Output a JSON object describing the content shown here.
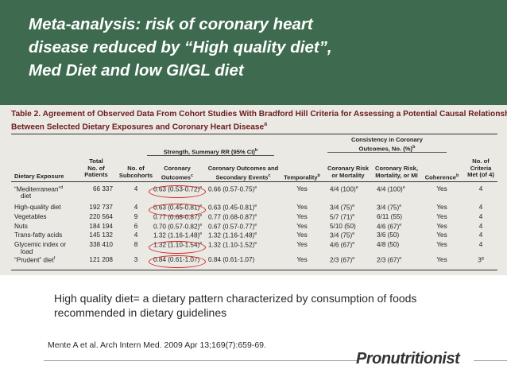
{
  "title_lines": [
    "Meta-analysis: risk of coronary heart",
    "disease reduced by “High quality diet”,",
    "Med Diet and low GI/GL diet"
  ],
  "table": {
    "caption_line1": "Table 2. Agreement of Observed Data From Cohort Studies With Bradford Hill Criteria for Assessing a Potential Causal Relationship",
    "caption_line2": "Between Selected Dietary Exposures and Coronary Heart Disease",
    "caption_sup": "a",
    "header_consistency_1": "Consistency in Coronary",
    "header_consistency_2": "Outcomes, No. (%)",
    "header_consistency_sup": "b",
    "header_strength": "Strength, Summary RR (95% CI)",
    "header_strength_sup": "b",
    "columns": {
      "dietary_exposure": "Dietary Exposure",
      "total_1": "Total",
      "total_2": "No. of",
      "total_3": "Patients",
      "subcohorts_1": "No. of",
      "subcohorts_2": "Subcohorts",
      "coronary_1": "Coronary",
      "coronary_2": "Outcomes",
      "coronary_sup": "c",
      "secondary_1": "Coronary Outcomes and",
      "secondary_2": "Secondary Events",
      "secondary_sup": "c",
      "temporality": "Temporality",
      "temporality_sup": "b",
      "risk_1": "Coronary Risk",
      "risk_2": "or Mortality",
      "risk_mi_1": "Coronary Risk,",
      "risk_mi_2": "Mortality, or MI",
      "coherence": "Coherence",
      "coherence_sup": "b",
      "criteria_1": "No. of",
      "criteria_2": "Criteria",
      "criteria_3": "Met (of 4)"
    },
    "rows": [
      {
        "exposure": "“Mediterranean”",
        "exposure2": "diet",
        "exposure_sup": "d",
        "total": "66 337",
        "sub": "4",
        "rr": "0.63 (0.53-0.72)",
        "rr_sup": "e",
        "rr2": "0.66 (0.57-0.75)",
        "rr2_sup": "e",
        "temp": "Yes",
        "risk": "4/4 (100)",
        "risk_sup": "e",
        "riskmi": "4/4 (100)",
        "riskmi_sup": "e",
        "coh": "Yes",
        "crit": "4"
      },
      {
        "exposure": "High-quality diet",
        "total": "192 737",
        "sub": "4",
        "rr": "0.63 (0.45-0.81)",
        "rr_sup": "e",
        "rr2": "0.63 (0.45-0.81)",
        "rr2_sup": "e",
        "temp": "Yes",
        "risk": "3/4 (75)",
        "risk_sup": "e",
        "riskmi": "3/4 (75)",
        "riskmi_sup": "e",
        "coh": "Yes",
        "crit": "4"
      },
      {
        "exposure": "Vegetables",
        "total": "220 564",
        "sub": "9",
        "rr": "0.77 (0.68-0.87)",
        "rr_sup": "e",
        "rr2": "0.77 (0.68-0.87)",
        "rr2_sup": "e",
        "temp": "Yes",
        "risk": "5/7 (71)",
        "risk_sup": "e",
        "riskmi": "6/11 (55)",
        "riskmi_sup": "",
        "coh": "Yes",
        "crit": "4"
      },
      {
        "exposure": "Nuts",
        "total": "184 194",
        "sub": "6",
        "rr": "0.70 (0.57-0.82)",
        "rr_sup": "e",
        "rr2": "0.67 (0.57-0.77)",
        "rr2_sup": "e",
        "temp": "Yes",
        "risk": "5/10 (50)",
        "risk_sup": "",
        "riskmi": "4/6 (67)",
        "riskmi_sup": "e",
        "coh": "Yes",
        "crit": "4"
      },
      {
        "exposure": "Trans-fatty acids",
        "total": "145 132",
        "sub": "4",
        "rr": "1.32 (1.16-1.48)",
        "rr_sup": "e",
        "rr2": "1.32 (1.16-1.48)",
        "rr2_sup": "e",
        "temp": "Yes",
        "risk": "3/4 (75)",
        "risk_sup": "e",
        "riskmi": "3/6 (50)",
        "riskmi_sup": "",
        "coh": "Yes",
        "crit": "4"
      },
      {
        "exposure": "Glycemic index or",
        "exposure2": "load",
        "total": "338 410",
        "sub": "8",
        "rr": "1.32 (1.10-1.54)",
        "rr_sup": "e",
        "rr2": "1.32 (1.10-1.52)",
        "rr2_sup": "e",
        "temp": "Yes",
        "risk": "4/6 (67)",
        "risk_sup": "e",
        "riskmi": "4/8 (50)",
        "riskmi_sup": "",
        "coh": "Yes",
        "crit": "4"
      },
      {
        "exposure": "“Prudent” diet",
        "exposure_sup": "f",
        "total": "121 208",
        "sub": "3",
        "rr": "0.84 (0.61-1.07)",
        "rr_sup": "",
        "rr2": "0.84 (0.61-1.07)",
        "rr2_sup": "",
        "temp": "Yes",
        "risk": "2/3 (67)",
        "risk_sup": "e",
        "riskmi": "2/3 (67)",
        "riskmi_sup": "e",
        "coh": "Yes",
        "crit": "3",
        "crit_sup": "g"
      }
    ]
  },
  "definition": "High quality diet= a dietary pattern characterized by consumption of foods recommended in dietary guidelines",
  "citation": "Mente A et al. Arch Intern Med. 2009 Apr 13;169(7):659-69.",
  "logo_text": "Pronutritionist",
  "colors": {
    "title_band": "#3e6b4f",
    "title_text": "#ffffff",
    "highlight": "#d32020",
    "caption": "#6b1d1d"
  }
}
